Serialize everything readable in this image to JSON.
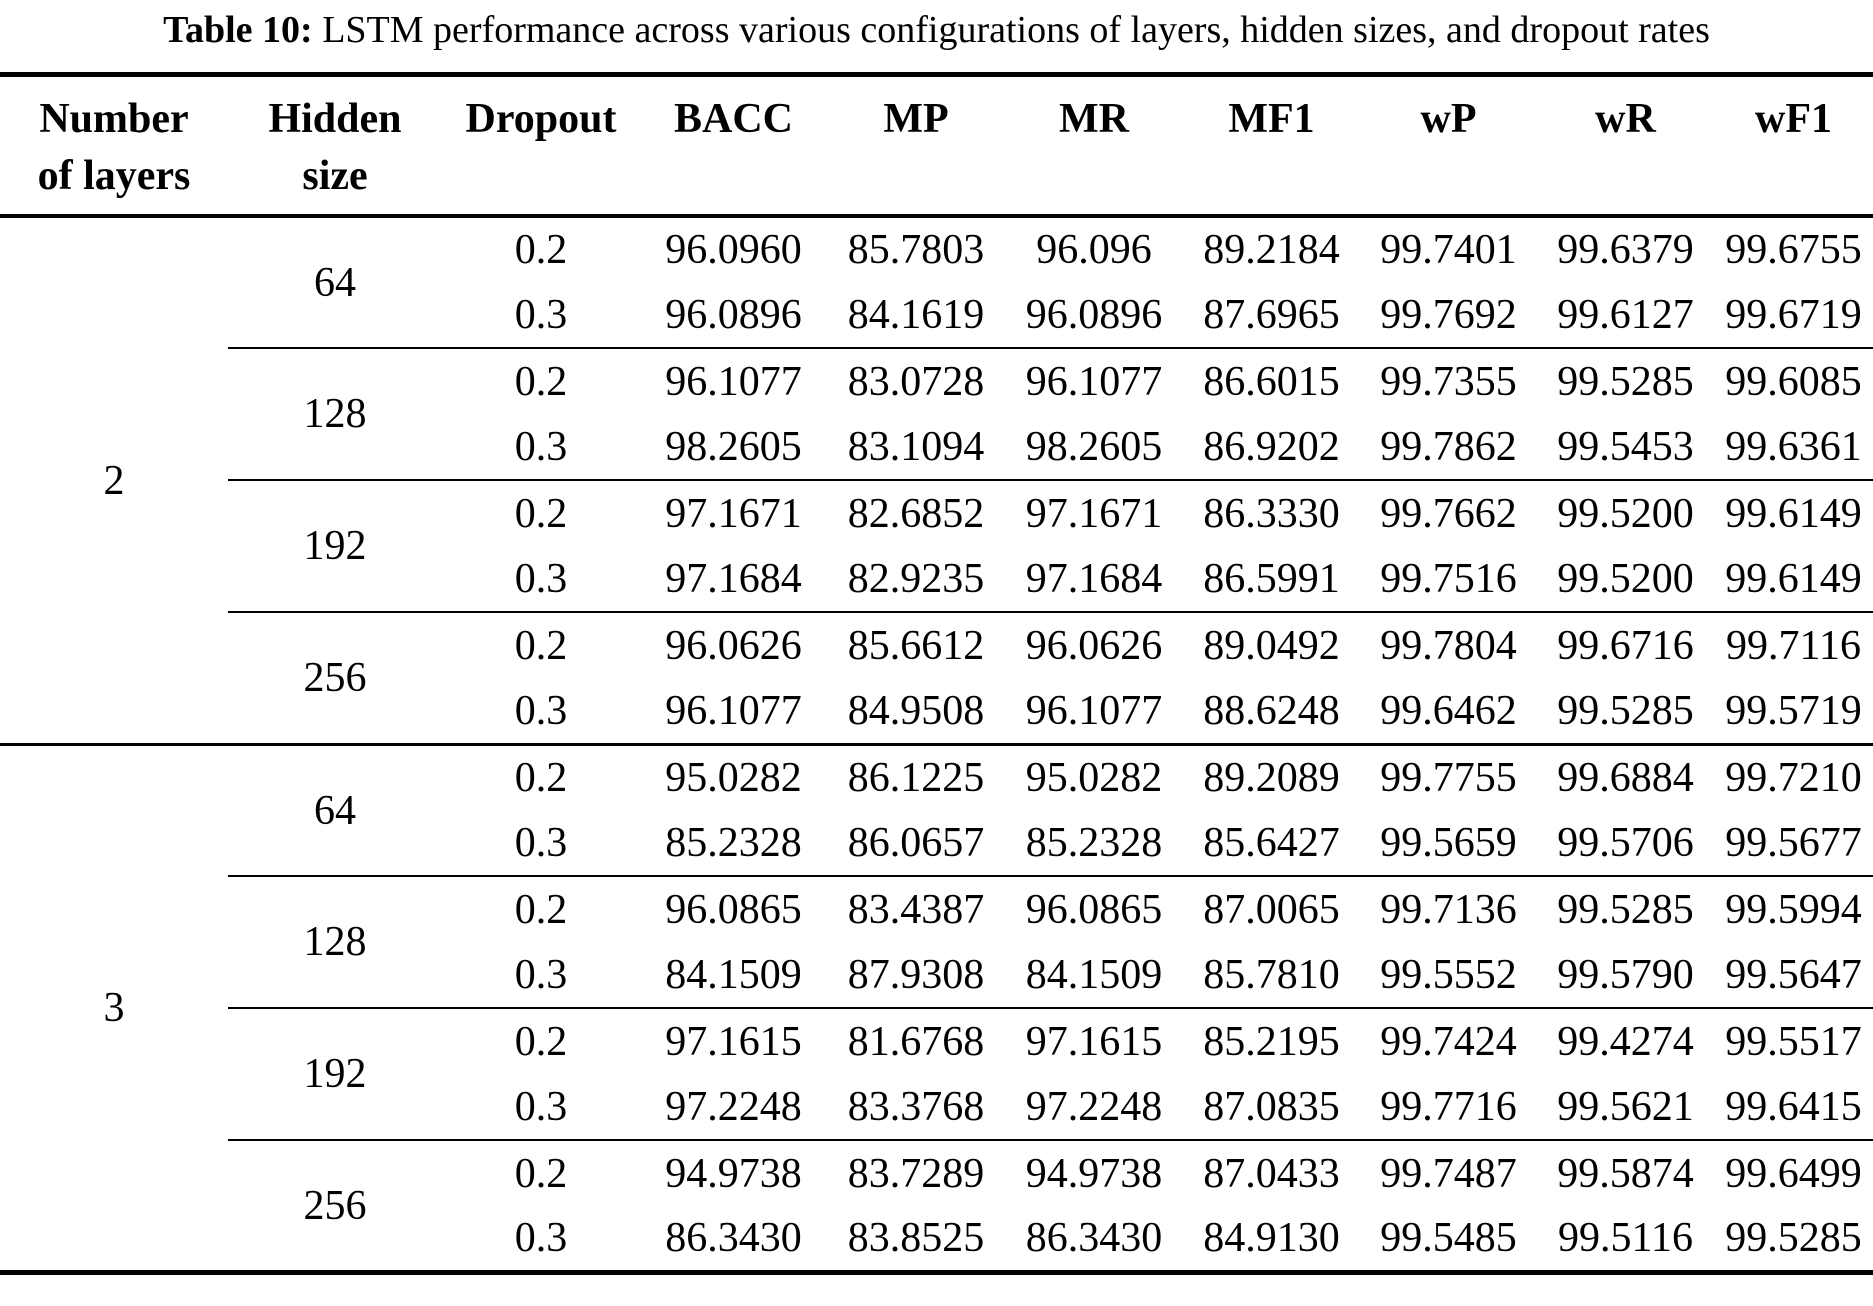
{
  "title": {
    "label": "Table 10:",
    "text": "LSTM performance across various configurations of layers, hidden sizes, and dropout rates"
  },
  "columns": [
    "Number of layers",
    "Hidden size",
    "Dropout",
    "BACC",
    "MP",
    "MR",
    "MF1",
    "wP",
    "wR",
    "wF1"
  ],
  "sections": [
    {
      "layers": "2",
      "groups": [
        {
          "hidden_size": "64",
          "rows": [
            {
              "dropout": "0.2",
              "bacc": "96.0960",
              "mp": "85.7803",
              "mr": "96.096",
              "mf1": "89.2184",
              "wp": "99.7401",
              "wr": "99.6379",
              "wf1": "99.6755"
            },
            {
              "dropout": "0.3",
              "bacc": "96.0896",
              "mp": "84.1619",
              "mr": "96.0896",
              "mf1": "87.6965",
              "wp": "99.7692",
              "wr": "99.6127",
              "wf1": "99.6719"
            }
          ]
        },
        {
          "hidden_size": "128",
          "rows": [
            {
              "dropout": "0.2",
              "bacc": "96.1077",
              "mp": "83.0728",
              "mr": "96.1077",
              "mf1": "86.6015",
              "wp": "99.7355",
              "wr": "99.5285",
              "wf1": "99.6085"
            },
            {
              "dropout": "0.3",
              "bacc": "98.2605",
              "mp": "83.1094",
              "mr": "98.2605",
              "mf1": "86.9202",
              "wp": "99.7862",
              "wr": "99.5453",
              "wf1": "99.6361"
            }
          ]
        },
        {
          "hidden_size": "192",
          "rows": [
            {
              "dropout": "0.2",
              "bacc": "97.1671",
              "mp": "82.6852",
              "mr": "97.1671",
              "mf1": "86.3330",
              "wp": "99.7662",
              "wr": "99.5200",
              "wf1": "99.6149"
            },
            {
              "dropout": "0.3",
              "bacc": "97.1684",
              "mp": "82.9235",
              "mr": "97.1684",
              "mf1": "86.5991",
              "wp": "99.7516",
              "wr": "99.5200",
              "wf1": "99.6149"
            }
          ]
        },
        {
          "hidden_size": "256",
          "rows": [
            {
              "dropout": "0.2",
              "bacc": "96.0626",
              "mp": "85.6612",
              "mr": "96.0626",
              "mf1": "89.0492",
              "wp": "99.7804",
              "wr": "99.6716",
              "wf1": "99.7116"
            },
            {
              "dropout": "0.3",
              "bacc": "96.1077",
              "mp": "84.9508",
              "mr": "96.1077",
              "mf1": "88.6248",
              "wp": "99.6462",
              "wr": "99.5285",
              "wf1": "99.5719"
            }
          ]
        }
      ]
    },
    {
      "layers": "3",
      "groups": [
        {
          "hidden_size": "64",
          "rows": [
            {
              "dropout": "0.2",
              "bacc": "95.0282",
              "mp": "86.1225",
              "mr": "95.0282",
              "mf1": "89.2089",
              "wp": "99.7755",
              "wr": "99.6884",
              "wf1": "99.7210"
            },
            {
              "dropout": "0.3",
              "bacc": "85.2328",
              "mp": "86.0657",
              "mr": "85.2328",
              "mf1": "85.6427",
              "wp": "99.5659",
              "wr": "99.5706",
              "wf1": "99.5677"
            }
          ]
        },
        {
          "hidden_size": "128",
          "rows": [
            {
              "dropout": "0.2",
              "bacc": "96.0865",
              "mp": "83.4387",
              "mr": "96.0865",
              "mf1": "87.0065",
              "wp": "99.7136",
              "wr": "99.5285",
              "wf1": "99.5994"
            },
            {
              "dropout": "0.3",
              "bacc": "84.1509",
              "mp": "87.9308",
              "mr": "84.1509",
              "mf1": "85.7810",
              "wp": "99.5552",
              "wr": "99.5790",
              "wf1": "99.5647"
            }
          ]
        },
        {
          "hidden_size": "192",
          "rows": [
            {
              "dropout": "0.2",
              "bacc": "97.1615",
              "mp": "81.6768",
              "mr": "97.1615",
              "mf1": "85.2195",
              "wp": "99.7424",
              "wr": "99.4274",
              "wf1": "99.5517"
            },
            {
              "dropout": "0.3",
              "bacc": "97.2248",
              "mp": "83.3768",
              "mr": "97.2248",
              "mf1": "87.0835",
              "wp": "99.7716",
              "wr": "99.5621",
              "wf1": "99.6415"
            }
          ]
        },
        {
          "hidden_size": "256",
          "rows": [
            {
              "dropout": "0.2",
              "bacc": "94.9738",
              "mp": "83.7289",
              "mr": "94.9738",
              "mf1": "87.0433",
              "wp": "99.7487",
              "wr": "99.5874",
              "wf1": "99.6499"
            },
            {
              "dropout": "0.3",
              "bacc": "86.3430",
              "mp": "83.8525",
              "mr": "86.3430",
              "mf1": "84.9130",
              "wp": "99.5485",
              "wr": "99.5116",
              "wf1": "99.5285"
            }
          ]
        }
      ]
    }
  ]
}
